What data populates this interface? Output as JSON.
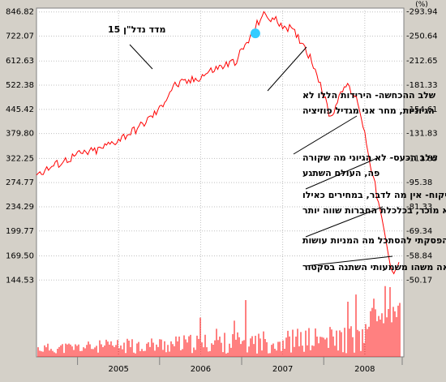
{
  "chart_data": {
    "type": "line",
    "title": "",
    "xlabel": "",
    "ylabel": "",
    "y_scale": "log",
    "ylim": [
      128,
      850
    ],
    "y_ticks_left": [
      "846.82",
      "722.07",
      "612.63",
      "522.38",
      "445.42",
      "379.80",
      "322.25",
      "274.77",
      "234.29",
      "199.77",
      "169.50",
      "144.53"
    ],
    "y_ticks_right_unit": "(%)",
    "y_ticks_right": [
      "293.94",
      "250.64",
      "212.65",
      "181.33",
      "154.61",
      "131.83",
      "111.85",
      "95.38",
      "81.33",
      "69.34",
      "58.84",
      "50.17"
    ],
    "x_ticks": [
      "2005",
      "2006",
      "2007",
      "2008"
    ],
    "grid": true,
    "line_color": "#ff0000",
    "volume_color": "#ff0000",
    "series": [
      {
        "name": "מדד נדל\"ן 15",
        "x": [
          "2004-07",
          "2004-10",
          "2005-01",
          "2005-04",
          "2005-07",
          "2005-10",
          "2006-01",
          "2006-03",
          "2006-06",
          "2006-09",
          "2006-12",
          "2007-02",
          "2007-04",
          "2007-06",
          "2007-08",
          "2007-10",
          "2007-12",
          "2008-02",
          "2008-04",
          "2008-06",
          "2008-07",
          "2008-08",
          "2008-09",
          "2008-10",
          "2008-11",
          "2008-12"
        ],
        "values": [
          290,
          310,
          330,
          340,
          365,
          395,
          445,
          520,
          540,
          580,
          610,
          700,
          830,
          800,
          760,
          690,
          570,
          420,
          530,
          470,
          380,
          300,
          240,
          190,
          150,
          165
        ]
      }
    ],
    "highlight_point": {
      "x": "2007-03",
      "value": 735,
      "color": "#33ccff"
    },
    "volume_note": "trading volume bars",
    "annotations": [
      {
        "text_lines": [
          "מדד נדל\"ן 15"
        ]
      },
      {
        "text_lines": [
          "שלב ההכחשה- הירידות הללו לא",
          "הגיוניות, מחר אני מגדיל פוזיציה"
        ]
      },
      {
        "text_lines": [
          "שלב הכעס- לא הגיוני מה שקורה",
          "פה, העולם השתגע"
        ]
      },
      {
        "text_lines": [
          "שלב המיקוח- אין מה לדבר, במחירים כאילו",
          "אני לא מוכר, בכלכלת החברות שווה יותר"
        ]
      },
      {
        "text_lines": [
          "דיכאון- הפסקתי להסתכל מה המניות עושות"
        ]
      },
      {
        "text_lines": [
          "קבלה- כנראה משהו משמעותי השתנה בסקטור"
        ]
      }
    ]
  }
}
